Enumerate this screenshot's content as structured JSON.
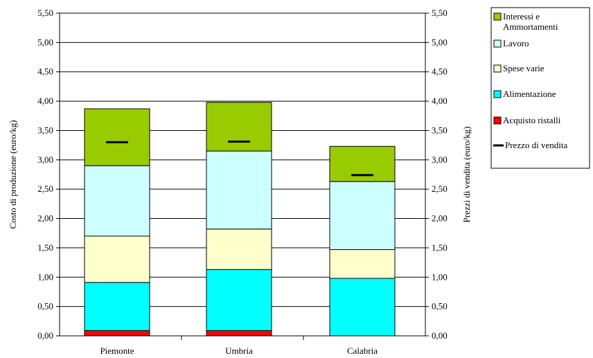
{
  "chart_data": {
    "type": "bar",
    "stacked": true,
    "categories": [
      "Piemonte",
      "Umbria",
      "Calabria"
    ],
    "series": [
      {
        "name": "Acquisto ristalli",
        "color": "#ff0000",
        "values": [
          0.09,
          0.09,
          0.0
        ]
      },
      {
        "name": "Alimentazione",
        "color": "#00ffff",
        "values": [
          0.82,
          1.04,
          0.98
        ]
      },
      {
        "name": "Spese varie",
        "color": "#ffffcc",
        "values": [
          0.79,
          0.69,
          0.49
        ]
      },
      {
        "name": "Lavoro",
        "color": "#ccffff",
        "values": [
          1.2,
          1.33,
          1.16
        ]
      },
      {
        "name": "Interessi e Ammortamenti",
        "color": "#99cc00",
        "values": [
          0.97,
          0.83,
          0.6
        ]
      }
    ],
    "price_series": {
      "name": "Prezzo di vendita",
      "color": "#000000",
      "values": [
        3.3,
        3.31,
        2.74
      ]
    },
    "ylabel": "Costo di produzione (euro/kg)",
    "ylabel_right": "Prezzi di vendita (euro/kg)",
    "ylim": [
      0,
      5.5
    ],
    "ytick_step": 0.5,
    "yticks": [
      "0,00",
      "0,50",
      "1,00",
      "1,50",
      "2,00",
      "2,50",
      "3,00",
      "3,50",
      "4,00",
      "4,50",
      "5,00",
      "5,50"
    ],
    "grid": true,
    "legend_position": "right",
    "legend_entries": [
      {
        "lines": [
          "Interessi e",
          "Ammortamenti"
        ],
        "color": "#99cc00",
        "kind": "box"
      },
      {
        "lines": [
          "Lavoro"
        ],
        "color": "#ccffff",
        "kind": "box"
      },
      {
        "lines": [
          "Spese varie"
        ],
        "color": "#ffffcc",
        "kind": "box"
      },
      {
        "lines": [
          "Alimentazione"
        ],
        "color": "#00ffff",
        "kind": "box"
      },
      {
        "lines": [
          "Acquisto ristalli"
        ],
        "color": "#ff0000",
        "kind": "box"
      },
      {
        "lines": [
          "Prezzo di vendita"
        ],
        "color": "#000000",
        "kind": "line"
      }
    ]
  }
}
